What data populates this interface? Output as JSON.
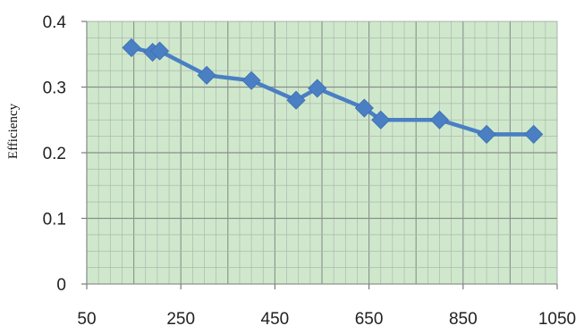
{
  "chart_data": {
    "type": "line",
    "title": "",
    "xlabel": "",
    "ylabel": "Efficiency",
    "xlim": [
      50,
      1050
    ],
    "ylim": [
      0,
      0.4
    ],
    "x_ticks": [
      50,
      250,
      450,
      650,
      850,
      1050
    ],
    "y_ticks": [
      0,
      0.1,
      0.2,
      0.3,
      0.4
    ],
    "x_tick_labels": [
      "50",
      "250",
      "450",
      "650",
      "850",
      "1050"
    ],
    "y_tick_labels": [
      "0",
      "0.1",
      "0.2",
      "0.3",
      "0.4"
    ],
    "grid": true,
    "legend": "none",
    "colors": {
      "plot_background": "#cfe8cc",
      "grid_minor": "#aeb7ae",
      "grid_major": "#8a8f8a",
      "series": "#4a7fc4"
    },
    "series": [
      {
        "marker": "diamond",
        "x": [
          145,
          190,
          205,
          305,
          400,
          495,
          540,
          640,
          675,
          800,
          900,
          1000
        ],
        "y": [
          0.36,
          0.353,
          0.355,
          0.318,
          0.31,
          0.28,
          0.298,
          0.268,
          0.25,
          0.25,
          0.228,
          0.228
        ]
      }
    ]
  }
}
